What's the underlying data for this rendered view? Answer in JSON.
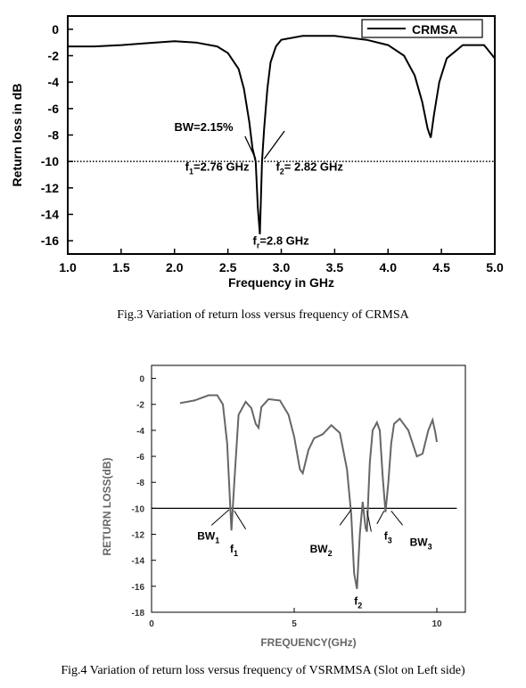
{
  "figures": [
    {
      "caption": "Fig.3 Variation of return loss versus frequency of CRMSA",
      "chart_data": {
        "type": "line",
        "title": "",
        "xlabel": "Frequency in GHz",
        "ylabel": "Return loss in dB",
        "xlim": [
          1.0,
          5.0
        ],
        "ylim": [
          -17,
          1
        ],
        "xticks": [
          "1.0",
          "1.5",
          "2.0",
          "2.5",
          "3.0",
          "3.5",
          "4.0",
          "4.5",
          "5.0"
        ],
        "yticks": [
          "0",
          "-2",
          "-4",
          "-6",
          "-8",
          "-10",
          "-12",
          "-14",
          "-16"
        ],
        "grid": false,
        "legend_position": "top-right",
        "series": [
          {
            "name": "CRMSA",
            "x": [
              1.0,
              1.25,
              1.5,
              1.75,
              2.0,
              2.2,
              2.4,
              2.5,
              2.6,
              2.65,
              2.7,
              2.73,
              2.76,
              2.78,
              2.8,
              2.82,
              2.84,
              2.87,
              2.9,
              2.95,
              3.0,
              3.2,
              3.5,
              3.8,
              4.0,
              4.15,
              4.25,
              4.32,
              4.37,
              4.4,
              4.43,
              4.48,
              4.55,
              4.7,
              4.9,
              5.0
            ],
            "y": [
              -1.3,
              -1.3,
              -1.2,
              -1.05,
              -0.9,
              -1.0,
              -1.3,
              -1.8,
              -3.0,
              -4.5,
              -7.0,
              -9.0,
              -10.0,
              -13.5,
              -15.5,
              -10.0,
              -7.5,
              -4.5,
              -2.5,
              -1.3,
              -0.8,
              -0.5,
              -0.5,
              -0.8,
              -1.2,
              -2.0,
              -3.5,
              -5.5,
              -7.5,
              -8.2,
              -6.5,
              -4.0,
              -2.2,
              -1.2,
              -1.2,
              -2.2
            ]
          },
          {
            "name": "",
            "style": "dotted",
            "x": [
              1.0,
              5.0
            ],
            "y": [
              -10,
              -10
            ]
          }
        ],
        "annotations": [
          {
            "text": "BW=2.15%",
            "x": 2.55,
            "y": -7.7
          },
          {
            "text_main": "f",
            "text_sub": "1",
            "text_rest": "=2.76 GHz",
            "x": 2.35,
            "y": -10.7
          },
          {
            "text_main": "f",
            "text_sub": "2",
            "text_rest": "= 2.82 GHz",
            "x": 3.2,
            "y": -10.7
          },
          {
            "text_main": "f",
            "text_sub": "r",
            "text_rest": "=2.8 GHz",
            "x": 2.85,
            "y": -16.3
          }
        ]
      }
    },
    {
      "caption": "Fig.4 Variation of return loss versus frequency of VSRMMSA (Slot on Left side)",
      "chart_data": {
        "type": "line",
        "title": "",
        "xlabel": "FREQUENCY(GHz)",
        "ylabel": "RETURN LOSS(dB)",
        "xlim": [
          0,
          11
        ],
        "ylim": [
          -18,
          1
        ],
        "xticks": [
          "0",
          "5",
          "10"
        ],
        "yticks": [
          "0",
          "-2",
          "-4",
          "-6",
          "-8",
          "-10",
          "-12",
          "-14",
          "-16",
          "-18"
        ],
        "grid": false,
        "series": [
          {
            "name": "",
            "x": [
              1.0,
              1.5,
              2.0,
              2.3,
              2.5,
              2.65,
              2.8,
              2.9,
              3.05,
              3.3,
              3.5,
              3.65,
              3.75,
              3.85,
              4.1,
              4.5,
              4.8,
              5.0,
              5.2,
              5.3,
              5.5,
              5.7,
              6.0,
              6.3,
              6.6,
              6.85,
              7.0,
              7.1,
              7.2,
              7.3,
              7.4,
              7.5,
              7.55,
              7.6,
              7.65,
              7.75,
              7.9,
              8.0,
              8.1,
              8.2,
              8.3,
              8.4,
              8.5,
              8.7,
              9.0,
              9.3,
              9.5,
              9.7,
              9.85,
              9.95,
              10.0
            ],
            "y": [
              -1.9,
              -1.7,
              -1.3,
              -1.3,
              -2.0,
              -5.0,
              -11.7,
              -8.0,
              -2.8,
              -1.8,
              -2.3,
              -3.5,
              -3.8,
              -2.2,
              -1.6,
              -1.7,
              -2.8,
              -4.5,
              -7.0,
              -7.3,
              -5.5,
              -4.6,
              -4.3,
              -3.6,
              -4.2,
              -7.0,
              -10.5,
              -15.0,
              -16.2,
              -12.0,
              -9.5,
              -11.5,
              -11.8,
              -9.0,
              -6.5,
              -4.0,
              -3.4,
              -4.0,
              -7.5,
              -10.3,
              -8.0,
              -5.0,
              -3.5,
              -3.1,
              -4.0,
              -6.0,
              -5.8,
              -4.0,
              -3.2,
              -4.2,
              -4.9
            ]
          },
          {
            "name": "",
            "style": "solid-reference",
            "x": [
              0,
              10.7
            ],
            "y": [
              -10,
              -10
            ]
          }
        ],
        "annotations": [
          {
            "text_main": "BW",
            "text_sub": "1",
            "x": 1.6,
            "y": -12.4
          },
          {
            "text_main": "f",
            "text_sub": "1",
            "x": 2.75,
            "y": -13.4
          },
          {
            "text_main": "BW",
            "text_sub": "2",
            "x": 5.55,
            "y": -13.4
          },
          {
            "text_main": "f",
            "text_sub": "2",
            "x": 7.1,
            "y": -17.4
          },
          {
            "text_main": "f",
            "text_sub": "3",
            "x": 8.15,
            "y": -12.4
          },
          {
            "text_main": "BW",
            "text_sub": "3",
            "x": 9.05,
            "y": -12.9
          }
        ]
      }
    }
  ]
}
